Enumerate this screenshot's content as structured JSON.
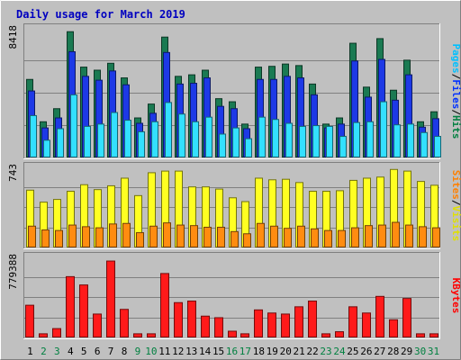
{
  "chart_data": {
    "type": "bar",
    "title": "Daily usage for March 2019",
    "categories": [
      "1",
      "2",
      "3",
      "4",
      "5",
      "6",
      "7",
      "8",
      "9",
      "10",
      "11",
      "12",
      "13",
      "14",
      "15",
      "16",
      "17",
      "18",
      "19",
      "20",
      "21",
      "22",
      "23",
      "24",
      "25",
      "26",
      "27",
      "28",
      "29",
      "30",
      "31"
    ],
    "weekend_days": [
      "2",
      "3",
      "9",
      "10",
      "16",
      "17",
      "23",
      "24",
      "30",
      "31"
    ],
    "panels": [
      {
        "id": "top",
        "max_label": "8418",
        "ylim": [
          0,
          8418
        ],
        "legend": [
          {
            "label": "Pages",
            "color": "#00c0ff"
          },
          {
            "label": "/",
            "color": "#000000"
          },
          {
            "label": "Files",
            "color": "#0030ff"
          },
          {
            "label": "/",
            "color": "#000000"
          },
          {
            "label": "Hits",
            "color": "#008040"
          }
        ],
        "series": [
          {
            "name": "Hits",
            "color": "#1a7a52",
            "values": [
              5100,
              2350,
              3200,
              8200,
              5900,
              5700,
              6150,
              5200,
              2600,
              3500,
              7850,
              5300,
              5400,
              5700,
              3850,
              3650,
              2200,
              5900,
              5950,
              6100,
              6000,
              4800,
              2200,
              2600,
              7450,
              4600,
              7750,
              4400,
              6350,
              2350,
              3000
            ]
          },
          {
            "name": "Files",
            "color": "#1d39e6",
            "values": [
              4350,
              1950,
              2600,
              6900,
              5300,
              5050,
              5650,
              4750,
              2250,
              2900,
              6850,
              4800,
              4850,
              5200,
              3350,
              3200,
              1900,
              5100,
              5100,
              5300,
              5200,
              4100,
              1950,
              2200,
              6300,
              3950,
              6400,
              3750,
              5400,
              2000,
              2550
            ]
          },
          {
            "name": "Pages",
            "color": "#33e0ff",
            "values": [
              2750,
              1150,
              1900,
              4100,
              2050,
              2200,
              2950,
              2450,
              1700,
              2350,
              3600,
              2850,
              2350,
              2650,
              1550,
              1950,
              1250,
              2650,
              2500,
              2250,
              2050,
              2100,
              2050,
              1400,
              2300,
              2350,
              3650,
              2150,
              2200,
              1650,
              1400
            ]
          }
        ]
      },
      {
        "id": "middle",
        "max_label": "743",
        "ylim": [
          0,
          743
        ],
        "legend": [
          {
            "label": "Sites",
            "color": "#ff8000"
          },
          {
            "label": "/",
            "color": "#000000"
          },
          {
            "label": "Visits",
            "color": "#e0e000"
          }
        ],
        "series": [
          {
            "name": "Visits",
            "color": "#ffff22",
            "values": [
              530,
              420,
              445,
              520,
              580,
              535,
              570,
              640,
              480,
              690,
              705,
              705,
              560,
              560,
              540,
              460,
              425,
              640,
              625,
              630,
              600,
              520,
              520,
              525,
              620,
              640,
              650,
              720,
              705,
              610,
              575
            ]
          },
          {
            "name": "Sites",
            "color": "#ff8c10",
            "values": [
              200,
              165,
              160,
              210,
              195,
              185,
              220,
              225,
              140,
              200,
              230,
              210,
              205,
              190,
              190,
              150,
              130,
              225,
              200,
              180,
              200,
              175,
              160,
              160,
              185,
              205,
              210,
              235,
              210,
              195,
              185
            ]
          }
        ]
      },
      {
        "id": "bottom",
        "max_label": "779388",
        "ylim": [
          0,
          779388
        ],
        "legend": [
          {
            "label": "KBytes",
            "color": "#ff0000"
          }
        ],
        "series": [
          {
            "name": "KBytes",
            "color": "#ff1a1a",
            "values": [
              315000,
              40000,
              90000,
              590000,
              510000,
              230000,
              740000,
              275000,
              40000,
              40000,
              620000,
              340000,
              355000,
              210000,
              195000,
              65000,
              40000,
              270000,
              240000,
              230000,
              300000,
              355000,
              40000,
              60000,
              300000,
              240000,
              400000,
              175000,
              380000,
              40000,
              40000
            ]
          }
        ]
      }
    ]
  }
}
